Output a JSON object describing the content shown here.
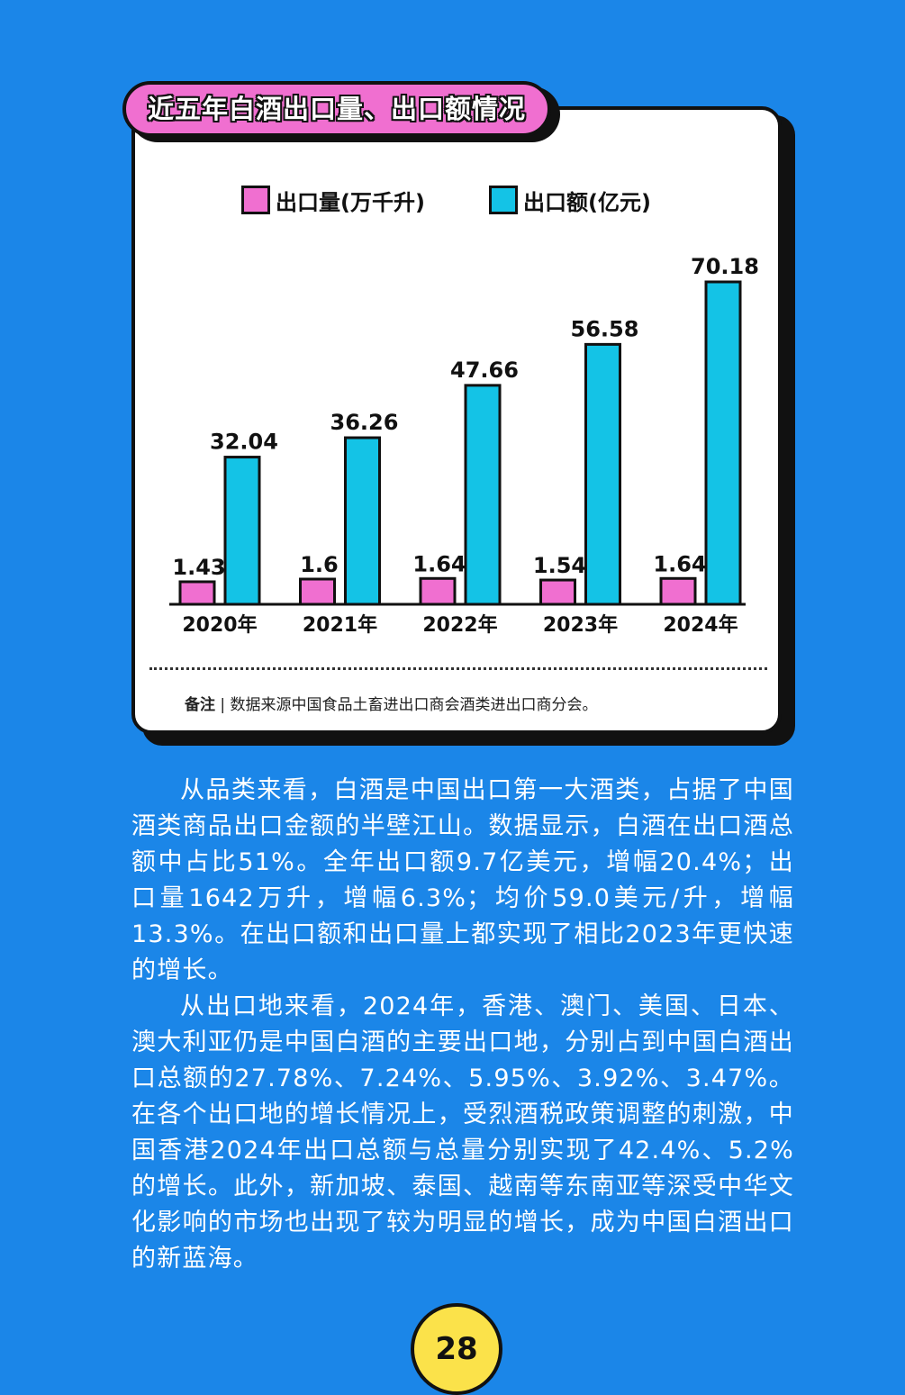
{
  "chart_data": {
    "type": "bar",
    "title": "近五年白酒出口量、出口额情况",
    "categories": [
      "2020年",
      "2021年",
      "2022年",
      "2023年",
      "2024年"
    ],
    "series": [
      {
        "name": "出口量(万千升)",
        "color": "#f06fd0",
        "values": [
          1.43,
          1.6,
          1.64,
          1.54,
          1.64
        ],
        "labels": [
          "1.43",
          "1.6",
          "1.64",
          "1.54",
          "1.64"
        ]
      },
      {
        "name": "出口额(亿元)",
        "color": "#14c3e6",
        "values": [
          32.04,
          36.26,
          47.66,
          56.58,
          70.18
        ],
        "labels": [
          "32.04",
          "36.26",
          "47.66",
          "56.58",
          "70.18"
        ]
      }
    ],
    "legend": "top",
    "grid": false
  },
  "note": {
    "prefix": "备注",
    "text": "数据来源中国食品土畜进出口商会酒类进出口商分会。"
  },
  "paragraphs": [
    "从品类来看，白酒是中国出口第一大酒类，占据了中国酒类商品出口金额的半壁江山。数据显示，白酒在出口酒总额中占比51%。全年出口额9.7亿美元，增幅20.4%；出口量1642万升，增幅6.3%；均价59.0美元/升，增幅13.3%。在出口额和出口量上都实现了相比2023年更快速的增长。",
    "从出口地来看，2024年，香港、澳门、美国、日本、澳大利亚仍是中国白酒的主要出口地，分别占到中国白酒出口总额的27.78%、7.24%、5.95%、3.92%、3.47%。在各个出口地的增长情况上，受烈酒税政策调整的刺激，中国香港2024年出口总额与总量分别实现了42.4%、5.2%的增长。此外，新加坡、泰国、越南等东南亚等深受中华文化影响的市场也出现了较为明显的增长，成为中国白酒出口的新蓝海。"
  ],
  "page_number": "28"
}
